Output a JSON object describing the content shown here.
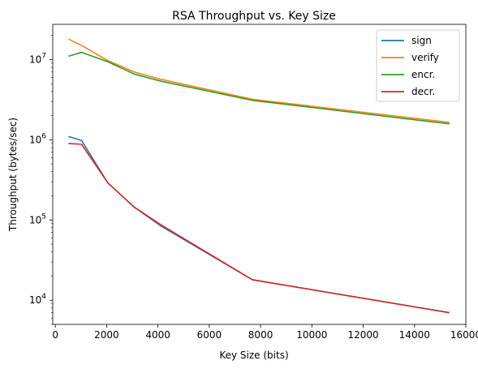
{
  "chart_data": {
    "type": "line",
    "title": "RSA Throughput vs. Key Size",
    "xlabel": "Key Size (bits)",
    "ylabel": "Throughput (bytes/sec)",
    "xlim": [
      -100,
      16000
    ],
    "ylim": [
      5000,
      27500000
    ],
    "yscale": "log",
    "grid": false,
    "legend_position": "top-right",
    "xticks": [
      0,
      2000,
      4000,
      6000,
      8000,
      10000,
      12000,
      14000,
      16000
    ],
    "xtick_labels": [
      "0",
      "2000",
      "4000",
      "6000",
      "8000",
      "10000",
      "12000",
      "14000",
      "16000"
    ],
    "yticks": [
      10000,
      100000,
      1000000,
      10000000
    ],
    "ytick_labels": [
      {
        "base": "10",
        "exp": "4"
      },
      {
        "base": "10",
        "exp": "5"
      },
      {
        "base": "10",
        "exp": "6"
      },
      {
        "base": "10",
        "exp": "7"
      }
    ],
    "x": [
      512,
      1024,
      2048,
      3072,
      4096,
      7680,
      15360
    ],
    "series": [
      {
        "name": "sign",
        "color": "#1f77b4",
        "values": [
          1100000,
          980000,
          290000,
          145000,
          85000,
          18000,
          7000
        ]
      },
      {
        "name": "verify",
        "color": "#ff7f0e",
        "values": [
          18000000,
          15000000,
          9700000,
          7000000,
          5700000,
          3200000,
          1650000
        ]
      },
      {
        "name": "encr.",
        "color": "#2ca02c",
        "values": [
          11000000,
          12300000,
          9400000,
          6600000,
          5400000,
          3100000,
          1580000
        ]
      },
      {
        "name": "decr.",
        "color": "#d62728",
        "values": [
          900000,
          880000,
          290000,
          145000,
          88000,
          18000,
          7000
        ]
      }
    ]
  }
}
